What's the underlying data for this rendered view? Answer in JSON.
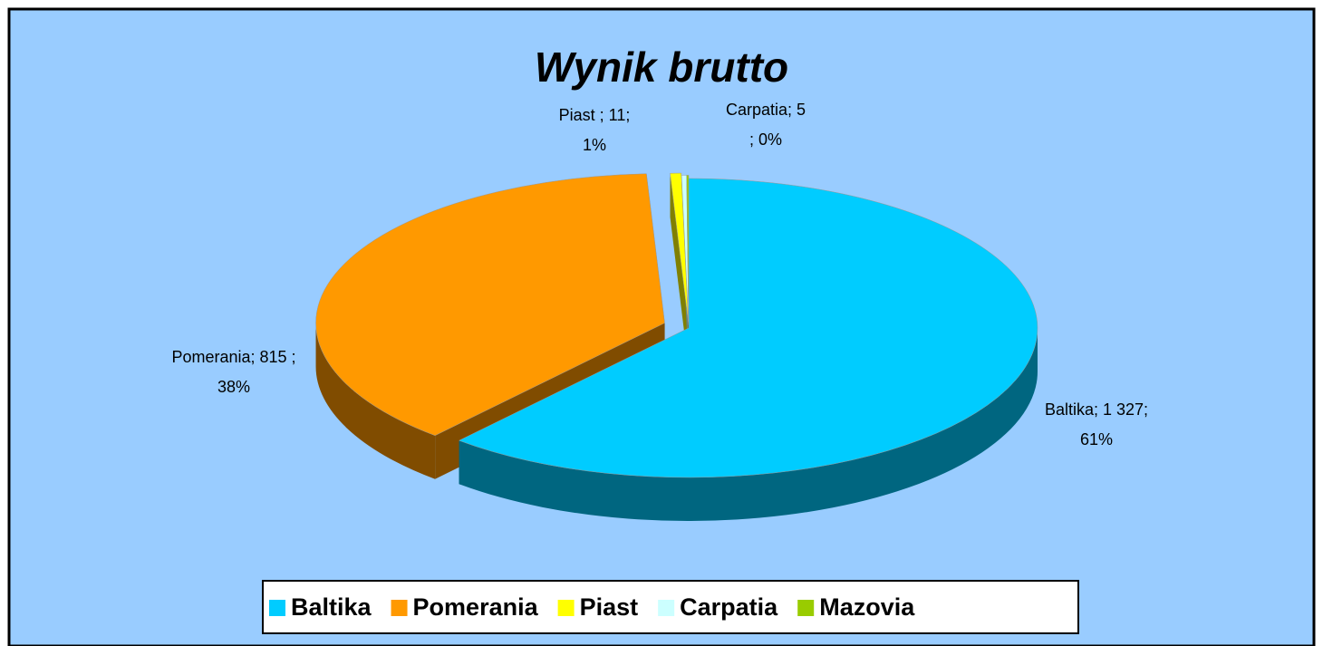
{
  "chart_data": {
    "type": "pie3d",
    "title": "Wynik brutto",
    "categories": [
      "Baltika",
      "Pomerania",
      "Piast",
      "Carpatia",
      "Mazovia"
    ],
    "values": [
      1327,
      815,
      11,
      5,
      2
    ],
    "value_labels": [
      "1 327",
      "815",
      "11",
      "5",
      null
    ],
    "data_labels": [
      [
        "Baltika; 1 327;",
        "61%"
      ],
      [
        "Pomerania; 815 ;",
        "38%"
      ],
      [
        "Piast ; 11;",
        "1%"
      ],
      [
        "Carpatia; 5",
        ";  0%"
      ],
      null
    ],
    "colors": [
      "#00ccff",
      "#ff9900",
      "#ffff00",
      "#ccffff",
      "#99cc00"
    ],
    "side_colors": [
      "#006680",
      "#804c00",
      "#808000",
      "#668080",
      "#4d6600"
    ],
    "legend": "bottom"
  }
}
